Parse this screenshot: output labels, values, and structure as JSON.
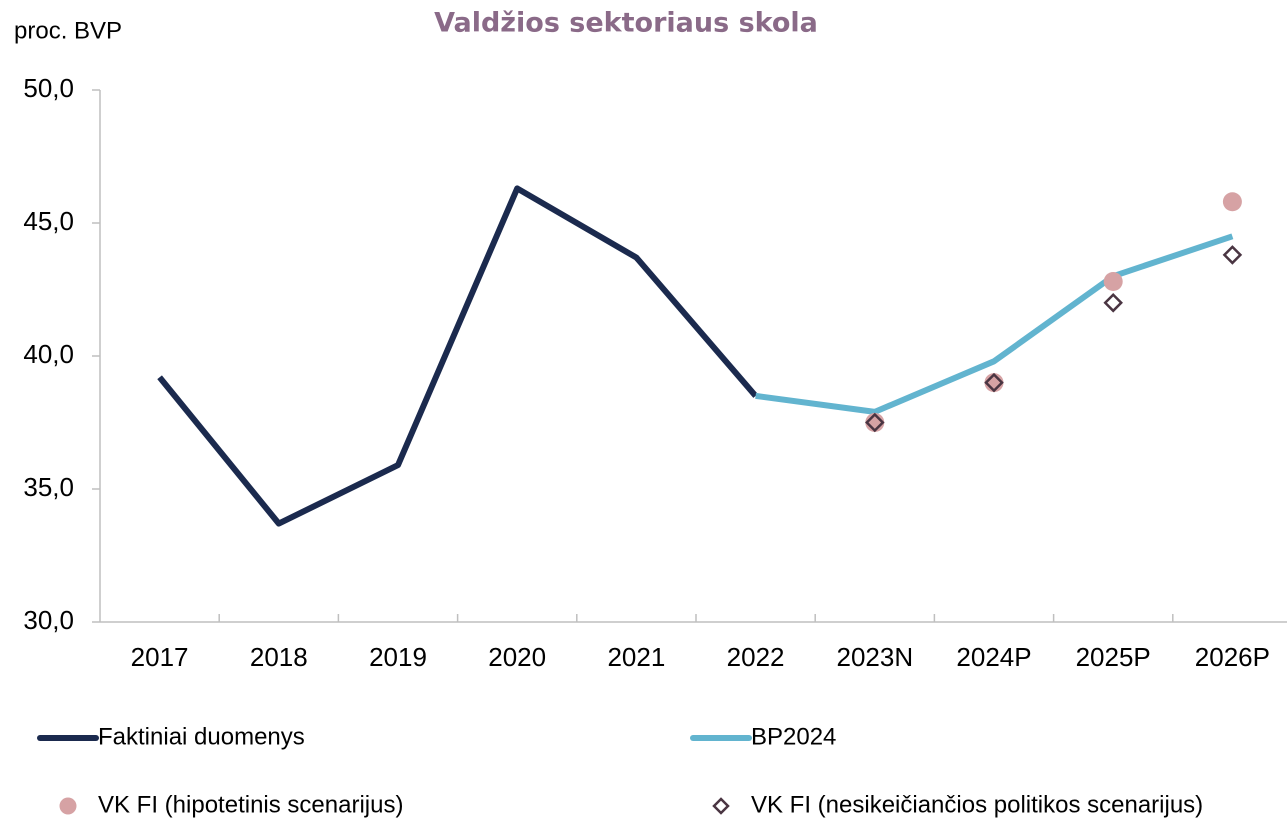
{
  "chart_data": {
    "type": "line",
    "title": "Valdžios sektoriaus skola",
    "y_label": "proc. BVP",
    "categories": [
      "2017",
      "2018",
      "2019",
      "2020",
      "2021",
      "2022",
      "2023N",
      "2024P",
      "2025P",
      "2026P"
    ],
    "series": [
      {
        "name": "Faktiniai duomenys",
        "color": "#1b2a4e",
        "style": "line",
        "values": [
          39.2,
          33.7,
          35.9,
          46.3,
          43.7,
          38.5,
          null,
          null,
          null,
          null
        ]
      },
      {
        "name": "BP2024",
        "color": "#62b4cf",
        "style": "line",
        "values": [
          null,
          null,
          null,
          null,
          null,
          38.5,
          37.9,
          39.8,
          43.0,
          44.5
        ]
      },
      {
        "name": "VK FI (hipotetinis scenarijus)",
        "color": "#d6a2a4",
        "style": "circle",
        "values": [
          null,
          null,
          null,
          null,
          null,
          null,
          37.5,
          39.0,
          42.8,
          45.8
        ]
      },
      {
        "name": "VK FI (nesikeičiančios politikos scenarijus)",
        "color": "#4a3542",
        "style": "diamond",
        "values": [
          null,
          null,
          null,
          null,
          null,
          null,
          37.5,
          39.0,
          42.0,
          43.8
        ]
      }
    ],
    "ylim": [
      30,
      50
    ],
    "yticks": [
      {
        "value": 30,
        "label": "30,0"
      },
      {
        "value": 35,
        "label": "35,0"
      },
      {
        "value": 40,
        "label": "40,0"
      },
      {
        "value": 45,
        "label": "45,0"
      },
      {
        "value": 50,
        "label": "50,0"
      }
    ],
    "grid": false,
    "legend": "bottom"
  }
}
